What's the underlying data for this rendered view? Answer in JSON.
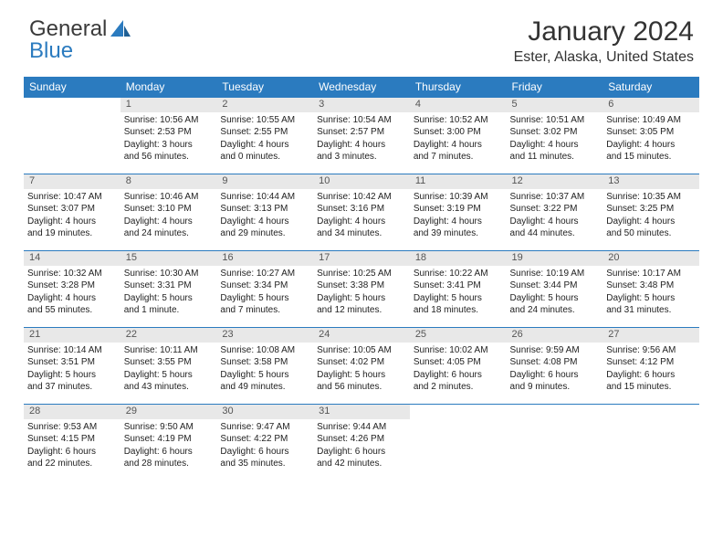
{
  "logo": {
    "text1": "General",
    "text2": "Blue"
  },
  "title": "January 2024",
  "location": "Ester, Alaska, United States",
  "colors": {
    "header_bg": "#2b7bbf",
    "header_text": "#ffffff",
    "daynum_bg": "#e8e8e8",
    "border": "#2b7bbf"
  },
  "weekdays": [
    "Sunday",
    "Monday",
    "Tuesday",
    "Wednesday",
    "Thursday",
    "Friday",
    "Saturday"
  ],
  "weeks": [
    {
      "nums": [
        "",
        "1",
        "2",
        "3",
        "4",
        "5",
        "6"
      ],
      "cells": [
        null,
        {
          "sunrise": "Sunrise: 10:56 AM",
          "sunset": "Sunset: 2:53 PM",
          "day1": "Daylight: 3 hours",
          "day2": "and 56 minutes."
        },
        {
          "sunrise": "Sunrise: 10:55 AM",
          "sunset": "Sunset: 2:55 PM",
          "day1": "Daylight: 4 hours",
          "day2": "and 0 minutes."
        },
        {
          "sunrise": "Sunrise: 10:54 AM",
          "sunset": "Sunset: 2:57 PM",
          "day1": "Daylight: 4 hours",
          "day2": "and 3 minutes."
        },
        {
          "sunrise": "Sunrise: 10:52 AM",
          "sunset": "Sunset: 3:00 PM",
          "day1": "Daylight: 4 hours",
          "day2": "and 7 minutes."
        },
        {
          "sunrise": "Sunrise: 10:51 AM",
          "sunset": "Sunset: 3:02 PM",
          "day1": "Daylight: 4 hours",
          "day2": "and 11 minutes."
        },
        {
          "sunrise": "Sunrise: 10:49 AM",
          "sunset": "Sunset: 3:05 PM",
          "day1": "Daylight: 4 hours",
          "day2": "and 15 minutes."
        }
      ]
    },
    {
      "nums": [
        "7",
        "8",
        "9",
        "10",
        "11",
        "12",
        "13"
      ],
      "cells": [
        {
          "sunrise": "Sunrise: 10:47 AM",
          "sunset": "Sunset: 3:07 PM",
          "day1": "Daylight: 4 hours",
          "day2": "and 19 minutes."
        },
        {
          "sunrise": "Sunrise: 10:46 AM",
          "sunset": "Sunset: 3:10 PM",
          "day1": "Daylight: 4 hours",
          "day2": "and 24 minutes."
        },
        {
          "sunrise": "Sunrise: 10:44 AM",
          "sunset": "Sunset: 3:13 PM",
          "day1": "Daylight: 4 hours",
          "day2": "and 29 minutes."
        },
        {
          "sunrise": "Sunrise: 10:42 AM",
          "sunset": "Sunset: 3:16 PM",
          "day1": "Daylight: 4 hours",
          "day2": "and 34 minutes."
        },
        {
          "sunrise": "Sunrise: 10:39 AM",
          "sunset": "Sunset: 3:19 PM",
          "day1": "Daylight: 4 hours",
          "day2": "and 39 minutes."
        },
        {
          "sunrise": "Sunrise: 10:37 AM",
          "sunset": "Sunset: 3:22 PM",
          "day1": "Daylight: 4 hours",
          "day2": "and 44 minutes."
        },
        {
          "sunrise": "Sunrise: 10:35 AM",
          "sunset": "Sunset: 3:25 PM",
          "day1": "Daylight: 4 hours",
          "day2": "and 50 minutes."
        }
      ]
    },
    {
      "nums": [
        "14",
        "15",
        "16",
        "17",
        "18",
        "19",
        "20"
      ],
      "cells": [
        {
          "sunrise": "Sunrise: 10:32 AM",
          "sunset": "Sunset: 3:28 PM",
          "day1": "Daylight: 4 hours",
          "day2": "and 55 minutes."
        },
        {
          "sunrise": "Sunrise: 10:30 AM",
          "sunset": "Sunset: 3:31 PM",
          "day1": "Daylight: 5 hours",
          "day2": "and 1 minute."
        },
        {
          "sunrise": "Sunrise: 10:27 AM",
          "sunset": "Sunset: 3:34 PM",
          "day1": "Daylight: 5 hours",
          "day2": "and 7 minutes."
        },
        {
          "sunrise": "Sunrise: 10:25 AM",
          "sunset": "Sunset: 3:38 PM",
          "day1": "Daylight: 5 hours",
          "day2": "and 12 minutes."
        },
        {
          "sunrise": "Sunrise: 10:22 AM",
          "sunset": "Sunset: 3:41 PM",
          "day1": "Daylight: 5 hours",
          "day2": "and 18 minutes."
        },
        {
          "sunrise": "Sunrise: 10:19 AM",
          "sunset": "Sunset: 3:44 PM",
          "day1": "Daylight: 5 hours",
          "day2": "and 24 minutes."
        },
        {
          "sunrise": "Sunrise: 10:17 AM",
          "sunset": "Sunset: 3:48 PM",
          "day1": "Daylight: 5 hours",
          "day2": "and 31 minutes."
        }
      ]
    },
    {
      "nums": [
        "21",
        "22",
        "23",
        "24",
        "25",
        "26",
        "27"
      ],
      "cells": [
        {
          "sunrise": "Sunrise: 10:14 AM",
          "sunset": "Sunset: 3:51 PM",
          "day1": "Daylight: 5 hours",
          "day2": "and 37 minutes."
        },
        {
          "sunrise": "Sunrise: 10:11 AM",
          "sunset": "Sunset: 3:55 PM",
          "day1": "Daylight: 5 hours",
          "day2": "and 43 minutes."
        },
        {
          "sunrise": "Sunrise: 10:08 AM",
          "sunset": "Sunset: 3:58 PM",
          "day1": "Daylight: 5 hours",
          "day2": "and 49 minutes."
        },
        {
          "sunrise": "Sunrise: 10:05 AM",
          "sunset": "Sunset: 4:02 PM",
          "day1": "Daylight: 5 hours",
          "day2": "and 56 minutes."
        },
        {
          "sunrise": "Sunrise: 10:02 AM",
          "sunset": "Sunset: 4:05 PM",
          "day1": "Daylight: 6 hours",
          "day2": "and 2 minutes."
        },
        {
          "sunrise": "Sunrise: 9:59 AM",
          "sunset": "Sunset: 4:08 PM",
          "day1": "Daylight: 6 hours",
          "day2": "and 9 minutes."
        },
        {
          "sunrise": "Sunrise: 9:56 AM",
          "sunset": "Sunset: 4:12 PM",
          "day1": "Daylight: 6 hours",
          "day2": "and 15 minutes."
        }
      ]
    },
    {
      "nums": [
        "28",
        "29",
        "30",
        "31",
        "",
        "",
        ""
      ],
      "cells": [
        {
          "sunrise": "Sunrise: 9:53 AM",
          "sunset": "Sunset: 4:15 PM",
          "day1": "Daylight: 6 hours",
          "day2": "and 22 minutes."
        },
        {
          "sunrise": "Sunrise: 9:50 AM",
          "sunset": "Sunset: 4:19 PM",
          "day1": "Daylight: 6 hours",
          "day2": "and 28 minutes."
        },
        {
          "sunrise": "Sunrise: 9:47 AM",
          "sunset": "Sunset: 4:22 PM",
          "day1": "Daylight: 6 hours",
          "day2": "and 35 minutes."
        },
        {
          "sunrise": "Sunrise: 9:44 AM",
          "sunset": "Sunset: 4:26 PM",
          "day1": "Daylight: 6 hours",
          "day2": "and 42 minutes."
        },
        null,
        null,
        null
      ]
    }
  ]
}
